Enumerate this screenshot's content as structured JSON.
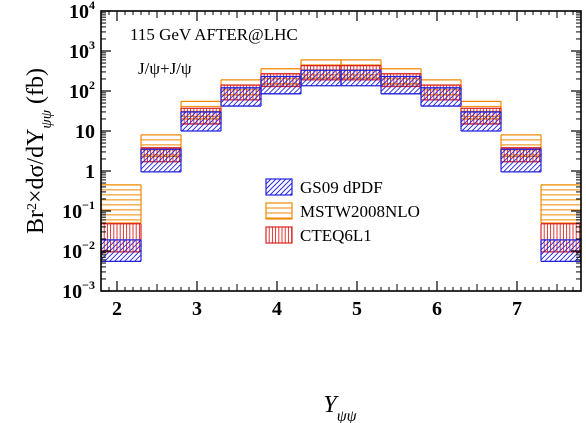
{
  "chart_data": {
    "type": "histogram-band",
    "title": "115 GeV AFTER@LHC",
    "subtitle": "J/ψ+J/ψ",
    "ylabel": {
      "main": "Br",
      "sup": "2",
      "mid": "×dσ/dY",
      "sub": "ψψ",
      "unit": " (fb)"
    },
    "xlabel": {
      "main": "Y",
      "sub": "ψψ"
    },
    "xlim": [
      1.8,
      7.8
    ],
    "ylim": [
      0.001,
      10000
    ],
    "y_scale": "log",
    "x_ticks": [
      "2",
      "3",
      "4",
      "5",
      "6",
      "7"
    ],
    "x_tick_values": [
      2,
      3,
      4,
      5,
      6,
      7
    ],
    "y_ticks": [
      {
        "base": "10",
        "exp": "4"
      },
      {
        "base": "10",
        "exp": "3"
      },
      {
        "base": "10",
        "exp": "2"
      },
      {
        "base": "10",
        "exp": ""
      },
      {
        "base": "1",
        "exp": ""
      },
      {
        "base": "10",
        "exp": "−1"
      },
      {
        "base": "10",
        "exp": "−2"
      },
      {
        "base": "10",
        "exp": "−3"
      }
    ],
    "y_tick_values": [
      10000,
      1000,
      100,
      10,
      1,
      0.1,
      0.01,
      0.001
    ],
    "bin_edges": [
      1.8,
      2.3,
      2.8,
      3.3,
      3.8,
      4.3,
      4.8,
      5.3,
      5.8,
      6.3,
      6.8,
      7.3,
      7.8
    ],
    "series": [
      {
        "name": "GS09 dPDF",
        "color": "#2222dd",
        "pattern": "diagonal",
        "low": [
          0.0055,
          0.95,
          10,
          42,
          85,
          135,
          135,
          85,
          42,
          10,
          0.95,
          0.0055
        ],
        "high": [
          0.019,
          3.5,
          30,
          120,
          230,
          330,
          330,
          230,
          120,
          30,
          3.5,
          0.019
        ]
      },
      {
        "name": "MSTW2008NLO",
        "color": "#ee8800",
        "pattern": "horizontal",
        "low": [
          0.05,
          2.3,
          20,
          80,
          150,
          210,
          210,
          150,
          80,
          20,
          2.3,
          0.05
        ],
        "high": [
          0.45,
          8,
          55,
          190,
          360,
          600,
          600,
          360,
          190,
          55,
          8,
          0.45
        ]
      },
      {
        "name": "CTEQ6L1",
        "color": "#dd2222",
        "pattern": "vertical",
        "low": [
          0.0095,
          1.7,
          15,
          60,
          130,
          190,
          190,
          130,
          60,
          15,
          1.7,
          0.0095
        ],
        "high": [
          0.048,
          3.8,
          37,
          140,
          270,
          430,
          430,
          270,
          140,
          37,
          3.8,
          0.048
        ]
      }
    ]
  }
}
